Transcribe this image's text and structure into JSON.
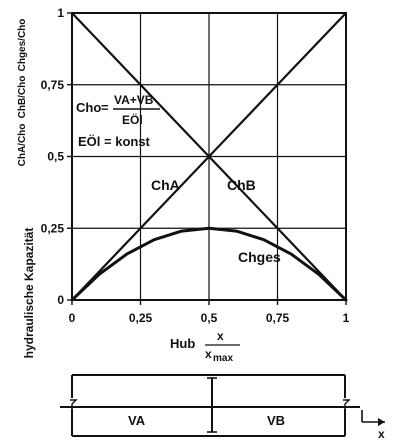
{
  "chart_data": {
    "type": "line",
    "x_axis_label": {
      "prefix": "Hub",
      "num": "x",
      "den": "x",
      "den_sub": "max"
    },
    "y_axis_label": {
      "prefix": "hydraulische Kapazität",
      "terms": [
        "ChA/Cho",
        "ChB/Cho",
        "Chges/Cho"
      ]
    },
    "xlim": [
      0,
      1
    ],
    "ylim": [
      0,
      1
    ],
    "x_ticks": [
      0,
      0.25,
      0.5,
      0.75,
      1
    ],
    "x_tick_labels": [
      "0",
      "0,25",
      "0,5",
      "0,75",
      "1"
    ],
    "y_ticks": [
      0,
      0.25,
      0.5,
      0.75,
      1
    ],
    "y_tick_labels": [
      "0",
      "0,25",
      "0,5",
      "0,75",
      "1"
    ],
    "grid": true,
    "series": [
      {
        "name": "ChA",
        "x": [
          0,
          0.25,
          0.5,
          0.75,
          1
        ],
        "y": [
          0,
          0.25,
          0.5,
          0.75,
          1
        ]
      },
      {
        "name": "ChB",
        "x": [
          0,
          0.25,
          0.5,
          0.75,
          1
        ],
        "y": [
          1,
          0.75,
          0.5,
          0.25,
          0
        ]
      },
      {
        "name": "Chges",
        "x": [
          0,
          0.1,
          0.2,
          0.3,
          0.4,
          0.5,
          0.6,
          0.7,
          0.8,
          0.9,
          1
        ],
        "y": [
          0,
          0.09,
          0.16,
          0.21,
          0.24,
          0.25,
          0.24,
          0.21,
          0.16,
          0.09,
          0
        ]
      }
    ],
    "annotations": {
      "formula_lhs": "Cho",
      "formula_num": "VA+VB",
      "formula_den": "EÖl",
      "formula_const": "EÖl = konst"
    }
  },
  "schematic": {
    "left_label": "VA",
    "right_label": "VB",
    "axis_label": "x"
  }
}
